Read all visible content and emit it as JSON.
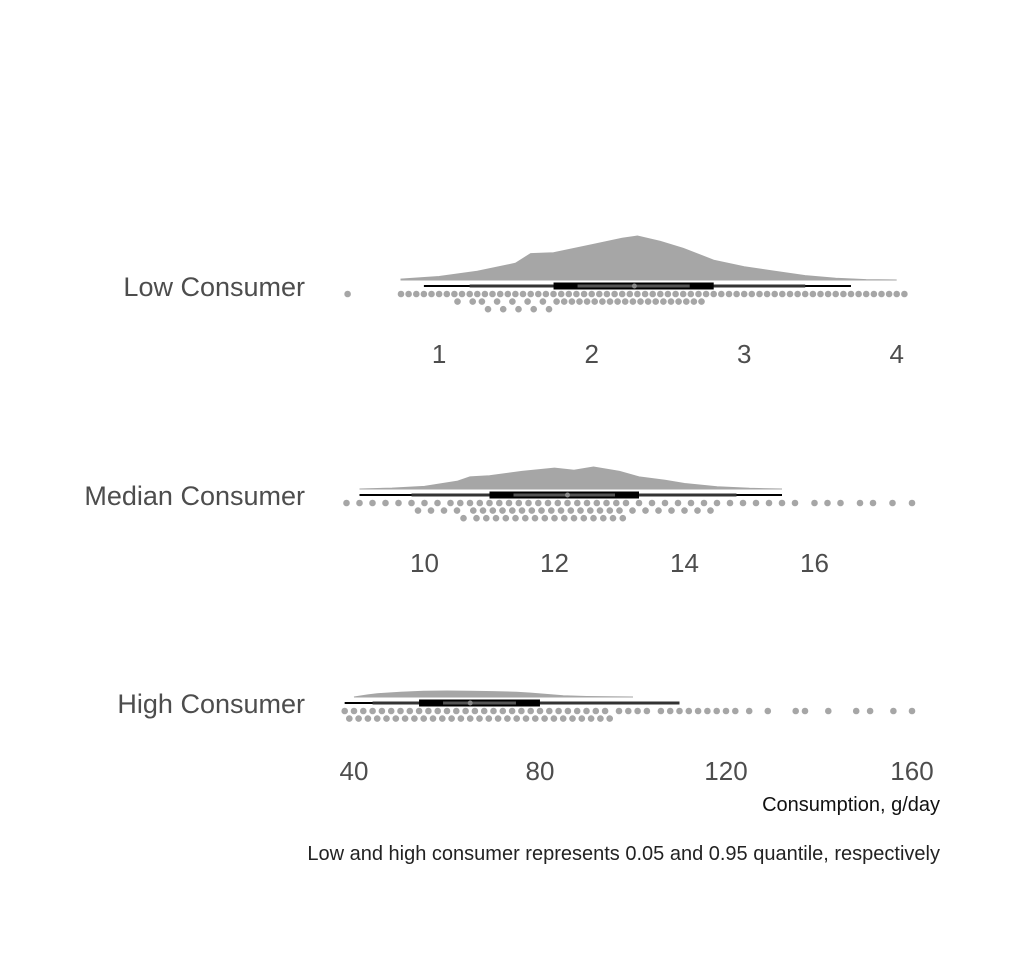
{
  "chart_data": {
    "type": "raincloud",
    "xlabel": "Consumption, g/day",
    "caption": "Low and high consumer represents 0.05 and 0.95 quantile, respectively",
    "colors": {
      "cloud": "#a6a6a6",
      "point": "#a6a6a6",
      "interval": "#000000",
      "text": "#4d4d4d"
    },
    "panels": [
      {
        "name": "Low Consumer",
        "xlim": [
          0.35,
          4.1
        ],
        "ticks": [
          1,
          2,
          3,
          4
        ],
        "tick_labels": [
          "1",
          "2",
          "3",
          "4"
        ],
        "median": 2.28,
        "interval_66": [
          1.75,
          2.8
        ],
        "interval_95": [
          1.2,
          3.4
        ],
        "range": [
          0.9,
          3.7
        ],
        "density": {
          "x": [
            0.75,
            1.0,
            1.25,
            1.5,
            1.6,
            1.75,
            2.0,
            2.2,
            2.3,
            2.45,
            2.6,
            2.8,
            3.0,
            3.2,
            3.4,
            3.6,
            3.8,
            4.0
          ],
          "y": [
            0.02,
            0.08,
            0.2,
            0.38,
            0.6,
            0.62,
            0.8,
            0.95,
            1.0,
            0.88,
            0.72,
            0.45,
            0.3,
            0.2,
            0.1,
            0.04,
            0.01,
            0.0
          ]
        },
        "points": [
          0.4,
          0.75,
          0.8,
          0.85,
          0.9,
          0.95,
          1.0,
          1.05,
          1.1,
          1.12,
          1.15,
          1.2,
          1.22,
          1.25,
          1.28,
          1.3,
          1.32,
          1.35,
          1.38,
          1.4,
          1.42,
          1.45,
          1.48,
          1.5,
          1.52,
          1.55,
          1.58,
          1.6,
          1.62,
          1.65,
          1.68,
          1.7,
          1.72,
          1.75,
          1.77,
          1.8,
          1.82,
          1.85,
          1.87,
          1.9,
          1.92,
          1.95,
          1.97,
          2.0,
          2.02,
          2.05,
          2.07,
          2.1,
          2.12,
          2.15,
          2.17,
          2.2,
          2.22,
          2.25,
          2.27,
          2.3,
          2.32,
          2.35,
          2.37,
          2.4,
          2.42,
          2.45,
          2.47,
          2.5,
          2.52,
          2.55,
          2.57,
          2.6,
          2.62,
          2.65,
          2.67,
          2.7,
          2.72,
          2.75,
          2.8,
          2.85,
          2.9,
          2.95,
          3.0,
          3.05,
          3.1,
          3.15,
          3.2,
          3.25,
          3.3,
          3.35,
          3.4,
          3.45,
          3.5,
          3.55,
          3.6,
          3.65,
          3.7,
          3.75,
          3.8,
          3.85,
          3.9,
          3.95,
          4.0,
          4.05
        ]
      },
      {
        "name": "Median Consumer",
        "xlim": [
          8.7,
          17.5
        ],
        "ticks": [
          10,
          12,
          14,
          16
        ],
        "tick_labels": [
          "10",
          "12",
          "14",
          "16"
        ],
        "median": 12.2,
        "interval_66": [
          11.0,
          13.3
        ],
        "interval_95": [
          9.8,
          14.8
        ],
        "range": [
          9.0,
          15.5
        ],
        "density": {
          "x": [
            9.0,
            9.5,
            10.0,
            10.5,
            10.7,
            11.0,
            11.5,
            12.0,
            12.3,
            12.6,
            13.0,
            13.3,
            13.7,
            14.0,
            14.5,
            15.0,
            15.5
          ],
          "y": [
            0.0,
            0.04,
            0.12,
            0.35,
            0.55,
            0.6,
            0.8,
            0.95,
            0.85,
            1.0,
            0.8,
            0.55,
            0.4,
            0.25,
            0.1,
            0.03,
            0.0
          ]
        },
        "points": [
          8.8,
          9.0,
          9.2,
          9.4,
          9.6,
          9.8,
          9.9,
          10.0,
          10.1,
          10.2,
          10.3,
          10.4,
          10.5,
          10.55,
          10.6,
          10.7,
          10.75,
          10.8,
          10.85,
          10.9,
          10.95,
          11.0,
          11.05,
          11.1,
          11.15,
          11.2,
          11.25,
          11.3,
          11.35,
          11.4,
          11.45,
          11.5,
          11.55,
          11.6,
          11.65,
          11.7,
          11.75,
          11.8,
          11.85,
          11.9,
          11.95,
          12.0,
          12.05,
          12.1,
          12.15,
          12.2,
          12.25,
          12.3,
          12.35,
          12.4,
          12.45,
          12.5,
          12.55,
          12.6,
          12.65,
          12.7,
          12.75,
          12.8,
          12.85,
          12.9,
          12.95,
          13.0,
          13.05,
          13.1,
          13.2,
          13.3,
          13.4,
          13.5,
          13.6,
          13.7,
          13.8,
          13.9,
          14.0,
          14.1,
          14.2,
          14.3,
          14.4,
          14.5,
          14.7,
          14.9,
          15.1,
          15.3,
          15.5,
          15.7,
          16.0,
          16.2,
          16.4,
          16.7,
          16.9,
          17.2,
          17.5
        ]
      },
      {
        "name": "High Consumer",
        "xlim": [
          37,
          160
        ],
        "ticks": [
          40,
          80,
          120,
          160
        ],
        "tick_labels": [
          "40",
          "80",
          "120",
          "160"
        ],
        "median": 65,
        "interval_66": [
          54,
          80
        ],
        "interval_95": [
          44,
          110
        ],
        "range": [
          38,
          110
        ],
        "density": {
          "x": [
            40,
            43,
            45,
            50,
            55,
            60,
            65,
            70,
            75,
            78,
            82,
            85,
            90,
            100
          ],
          "y": [
            0.0,
            0.35,
            0.55,
            0.8,
            0.95,
            1.0,
            0.95,
            0.9,
            0.8,
            0.65,
            0.4,
            0.2,
            0.08,
            0.0
          ]
        },
        "points": [
          38,
          39,
          40,
          41,
          42,
          43,
          44,
          45,
          46,
          47,
          48,
          49,
          50,
          51,
          52,
          53,
          54,
          55,
          56,
          57,
          58,
          59,
          60,
          61,
          62,
          63,
          64,
          65,
          66,
          67,
          68,
          69,
          70,
          71,
          72,
          73,
          74,
          75,
          76,
          77,
          78,
          79,
          80,
          81,
          82,
          83,
          84,
          85,
          86,
          87,
          88,
          89,
          90,
          91,
          92,
          93,
          94,
          95,
          97,
          99,
          101,
          103,
          106,
          108,
          110,
          112,
          114,
          116,
          118,
          120,
          122,
          125,
          129,
          135,
          137,
          142,
          148,
          151,
          156,
          160
        ]
      }
    ]
  }
}
